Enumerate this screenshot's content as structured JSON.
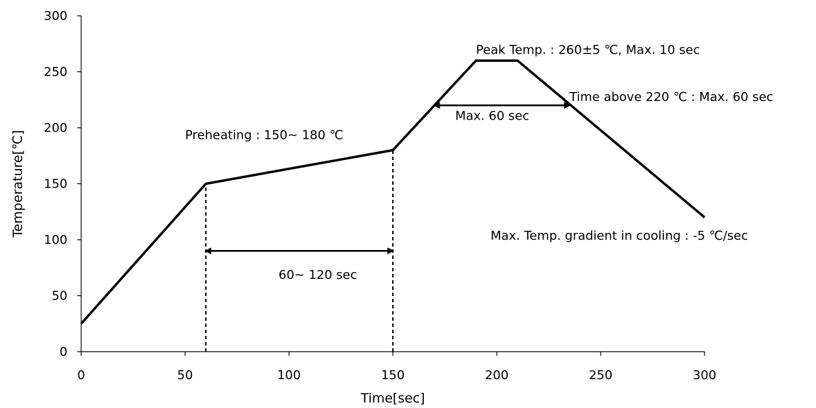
{
  "chart_data": {
    "type": "line",
    "title": "",
    "xlabel": "Time[sec]",
    "ylabel": "Temperature[℃]",
    "xlim": [
      0,
      300
    ],
    "ylim": [
      0,
      300
    ],
    "x_ticks": [
      0,
      50,
      100,
      150,
      200,
      250,
      300
    ],
    "y_ticks": [
      0,
      50,
      100,
      150,
      200,
      250,
      300
    ],
    "grid": false,
    "legend": "none",
    "series": [
      {
        "x": [
          0,
          60,
          150,
          190,
          210,
          300
        ],
        "y": [
          25,
          150,
          180,
          260,
          260,
          120
        ]
      }
    ],
    "dashed_lines": [
      {
        "x": 60,
        "y_from": 0,
        "y_to": 150
      },
      {
        "x": 150,
        "y_from": 0,
        "y_to": 180
      }
    ],
    "arrows": [
      {
        "x_from": 60,
        "x_to": 150,
        "y": 90
      },
      {
        "x_from": 170,
        "x_to": 235,
        "y": 220
      }
    ],
    "annotations": [
      {
        "text": "Preheating : 150~ 180 ℃",
        "x": 50,
        "y": 190
      },
      {
        "text": "60~ 120 sec",
        "x": 95,
        "y": 65
      },
      {
        "text": "Peak Temp. : 260±5 ℃, Max. 10 sec",
        "x": 190,
        "y": 266
      },
      {
        "text": "Max. 60 sec",
        "x": 180,
        "y": 207
      },
      {
        "text": "Time above 220 ℃ : Max. 60 sec",
        "x": 235,
        "y": 224
      },
      {
        "text": "Max. Temp. gradient in cooling : -5 ℃/sec",
        "x": 197,
        "y": 100
      }
    ]
  }
}
